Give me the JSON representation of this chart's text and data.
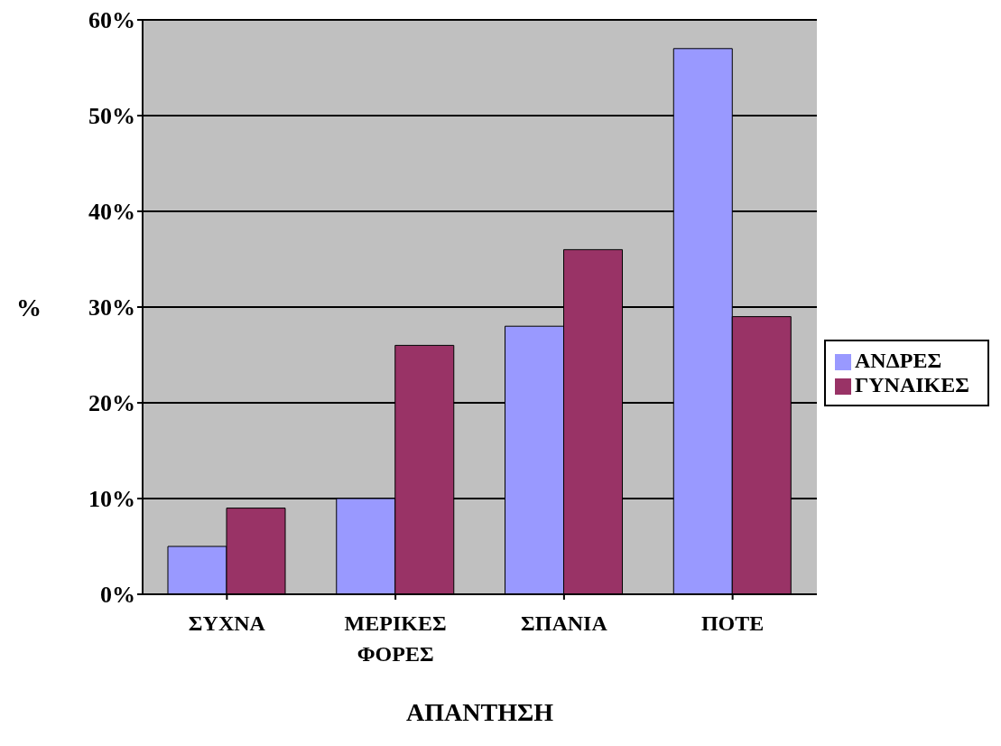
{
  "chart_data": {
    "type": "bar",
    "xlabel": "ΑΠΑΝΤΗΣΗ",
    "ylabel": "%",
    "categories": [
      "ΣΥΧΝΑ",
      "ΜΕΡΙΚΕΣ ΦΟΡΕΣ",
      "ΣΠΑΝΙΑ",
      "ΠΟΤΕ"
    ],
    "series": [
      {
        "name": "ΑΝΔΡΕΣ",
        "color": "#9999ff",
        "values": [
          5,
          10,
          28,
          57
        ]
      },
      {
        "name": "ΓΥΝΑΙΚΕΣ",
        "color": "#993366",
        "values": [
          9,
          26,
          36,
          29
        ]
      }
    ],
    "ylim": [
      0,
      60
    ],
    "yticks": [
      {
        "value": 0,
        "label": "0%"
      },
      {
        "value": 10,
        "label": "10%"
      },
      {
        "value": 20,
        "label": "20%"
      },
      {
        "value": 30,
        "label": "30%"
      },
      {
        "value": 40,
        "label": "40%"
      },
      {
        "value": 50,
        "label": "50%"
      },
      {
        "value": 60,
        "label": "60%"
      }
    ],
    "grid": "y",
    "legend": "right"
  }
}
